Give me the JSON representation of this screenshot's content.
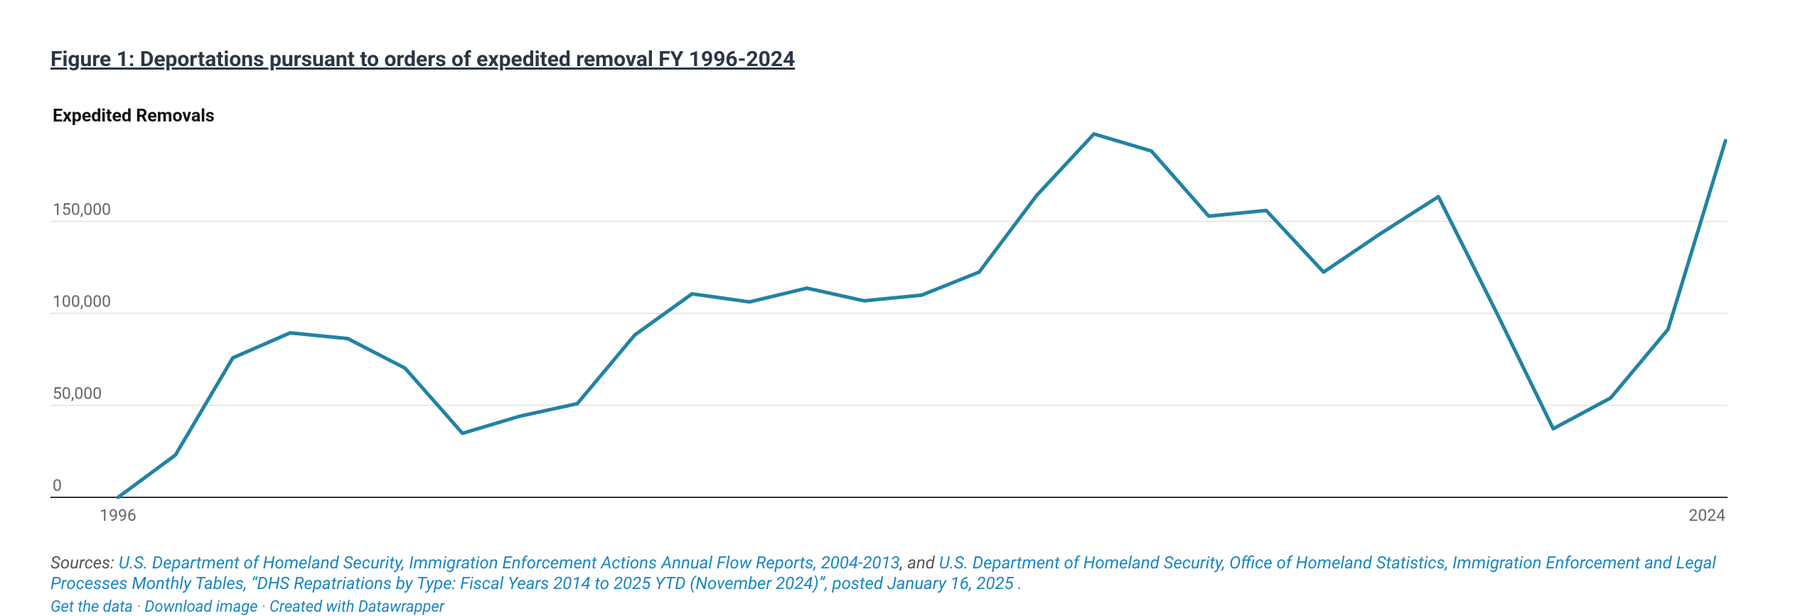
{
  "chart_data": {
    "type": "line",
    "title": "Figure 1: Deportations pursuant to orders of expedited removal FY 1996-2024",
    "y_label": "Expedited Removals",
    "x": [
      1996,
      1997,
      1998,
      1999,
      2000,
      2001,
      2002,
      2003,
      2004,
      2005,
      2006,
      2007,
      2008,
      2009,
      2010,
      2011,
      2012,
      2013,
      2014,
      2015,
      2016,
      2017,
      2018,
      2019,
      2020,
      2021,
      2022,
      2023,
      2024
    ],
    "values": [
      0,
      23000,
      75800,
      89400,
      86300,
      70200,
      34800,
      44100,
      50900,
      88200,
      110600,
      106200,
      113700,
      106800,
      109900,
      122400,
      164000,
      197500,
      188200,
      152800,
      155900,
      122400,
      143500,
      163400,
      101200,
      37300,
      54000,
      91300,
      193800
    ],
    "color": "#2183a3",
    "xlim": [
      1996,
      2024
    ],
    "xticks": [
      1996,
      2024
    ],
    "ylim": [
      0,
      200000
    ],
    "yticks": [
      0,
      {
        "value": 50000,
        "label": "50,000"
      },
      {
        "value": 100000,
        "label": "100,000"
      },
      {
        "value": 150000,
        "label": "150,000"
      }
    ],
    "grid": true
  },
  "footer": {
    "label": "Sources:",
    "link1": "U.S. Department of Homeland Security, Immigration Enforcement Actions Annual Flow Reports, 2004-2013",
    "joiner": ", and",
    "link2": "U.S. Department of Homeland Security, Office of Homeland Statistics, Immigration Enforcement and Legal Processes Monthly Tables, “DHS Repatriations by Type: Fiscal Years 2014 to 2025 YTD (November 2024)”, posted January 16, 2025 .",
    "links": [
      "Get the data",
      "Download image",
      "Created with Datawrapper"
    ]
  }
}
